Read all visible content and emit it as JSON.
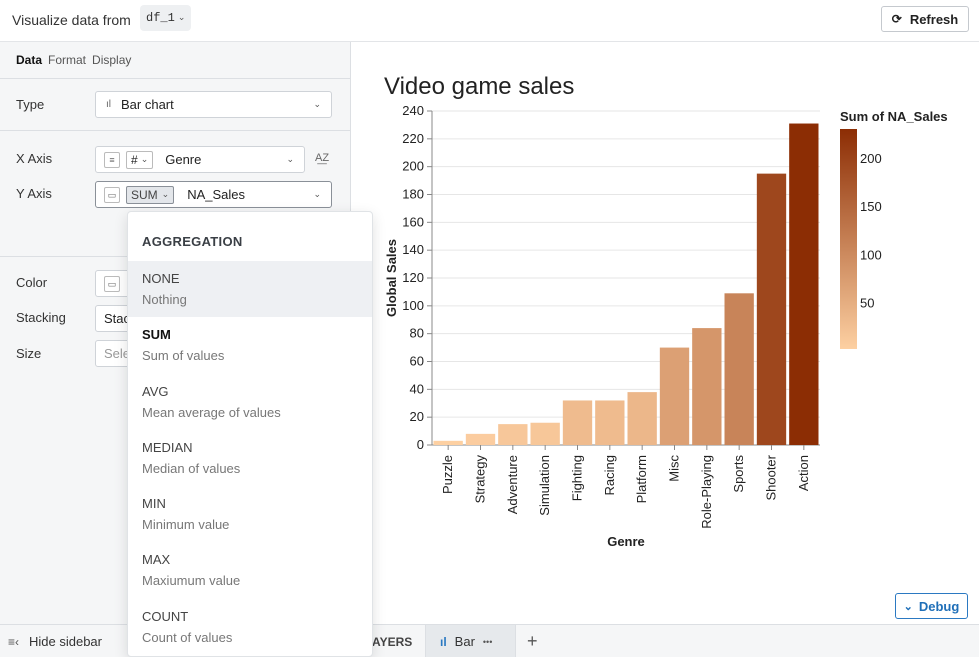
{
  "header": {
    "title": "Visualize data from",
    "df_name": "df_1",
    "refresh_label": "Refresh"
  },
  "sidebar": {
    "tabs": [
      "Data",
      "Format",
      "Display"
    ],
    "type_label": "Type",
    "type_value": "Bar chart",
    "xaxis_label": "X Axis",
    "xaxis_type": "#",
    "xaxis_field": "Genre",
    "yaxis_label": "Y Axis",
    "yaxis_agg": "SUM",
    "yaxis_field": "NA_Sales",
    "color_label": "Color",
    "stacking_label": "Stacking",
    "stacking_value": "Stac",
    "size_label": "Size",
    "size_placeholder": "Sele"
  },
  "aggregation": {
    "heading": "AGGREGATION",
    "options": [
      {
        "name": "NONE",
        "desc": "Nothing"
      },
      {
        "name": "SUM",
        "desc": "Sum of values"
      },
      {
        "name": "AVG",
        "desc": "Mean average of values"
      },
      {
        "name": "MEDIAN",
        "desc": "Median of values"
      },
      {
        "name": "MIN",
        "desc": "Minimum value"
      },
      {
        "name": "MAX",
        "desc": "Maxiumum value"
      },
      {
        "name": "COUNT",
        "desc": "Count of values"
      }
    ]
  },
  "bottombar": {
    "hide_sidebar": "Hide sidebar",
    "layers": "AYERS",
    "bar_tab": "Bar",
    "more": "•••",
    "add": "+"
  },
  "debug_label": "Debug",
  "chart_data": {
    "type": "bar",
    "title": "Video game sales",
    "xlabel": "Genre",
    "ylabel": "Global Sales",
    "ylim": [
      0,
      240
    ],
    "yticks": [
      0,
      20,
      40,
      60,
      80,
      100,
      120,
      140,
      160,
      180,
      200,
      220,
      240
    ],
    "categories": [
      "Puzzle",
      "Strategy",
      "Adventure",
      "Simulation",
      "Fighting",
      "Racing",
      "Platform",
      "Misc",
      "Role-Playing",
      "Sports",
      "Shooter",
      "Action"
    ],
    "values": [
      3,
      8,
      15,
      16,
      32,
      32,
      38,
      70,
      84,
      109,
      195,
      231
    ],
    "legend": {
      "title": "Sum of NA_Sales",
      "ticks": [
        50,
        100,
        150,
        200
      ],
      "position": "right",
      "color_low": "#fdd0a2",
      "color_high": "#8c2d04"
    }
  }
}
